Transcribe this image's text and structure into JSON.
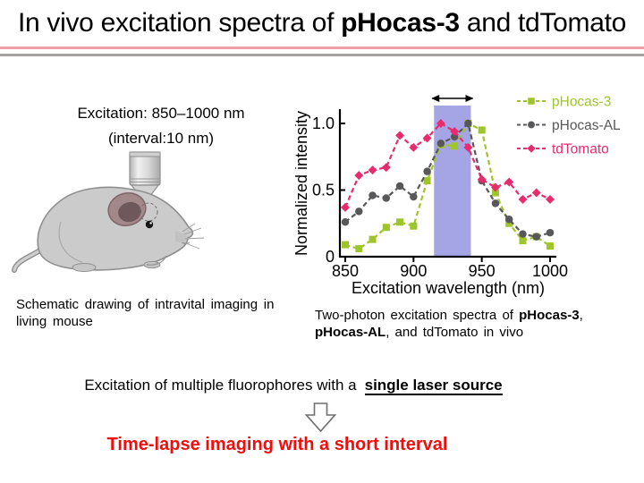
{
  "header": {
    "title_runs": [
      {
        "t": "In vivo excitation spectra of "
      },
      {
        "t": "pHocas-3",
        "b": true
      },
      {
        "t": " and tdTomato"
      }
    ],
    "divider_colors": {
      "pink": "#f2a0a3",
      "gray": "#a5a1a1"
    }
  },
  "left_panel": {
    "excitation_line1": "Excitation: 850–1000 nm",
    "excitation_line2": "(interval:10 nm)",
    "illustration": "mouse-under-two-photon-objective",
    "caption_line1": "Schematic drawing of intravital imaging in",
    "caption_line2": "living mouse"
  },
  "right_panel": {
    "caption_line1_runs": [
      {
        "t": "Two-photon excitation spectra of "
      },
      {
        "t": "pHocas-3",
        "b": true
      },
      {
        "t": ","
      }
    ],
    "caption_line2_runs": [
      {
        "t": "pHocas-AL",
        "b": true
      },
      {
        "t": ", and tdTomato in vivo"
      }
    ]
  },
  "bottom_panel": {
    "statement_runs": [
      {
        "t": "Excitation of multiple fluorophores with a"
      },
      {
        "t": "single laser source",
        "b": true,
        "u": true
      }
    ],
    "arrow_icon": "down-arrow",
    "conclusion": "Time-lapse imaging with a short interval",
    "conclusion_color": "#f20d0d"
  },
  "chart_data": {
    "type": "line",
    "title": "",
    "xlabel": "Excitation wavelength (nm)",
    "ylabel": "Normalized intensity",
    "xlim": [
      850,
      1000
    ],
    "ylim": [
      0,
      1.05
    ],
    "xticks": [
      850,
      900,
      950,
      1000
    ],
    "yticks": [
      {
        "v": 0,
        "label": "0"
      },
      {
        "v": 0.5,
        "label": "0.5"
      },
      {
        "v": 1.0,
        "label": "1.0"
      }
    ],
    "grid": false,
    "legend_position": "top-right",
    "line_style": "dashed",
    "x": [
      850,
      860,
      870,
      880,
      890,
      900,
      910,
      920,
      930,
      940,
      950,
      960,
      970,
      980,
      990,
      1000
    ],
    "series": [
      {
        "name": "pHocas-3",
        "color": "#9fc52c",
        "marker": "square",
        "values": [
          0.09,
          0.06,
          0.13,
          0.22,
          0.26,
          0.23,
          0.57,
          0.84,
          0.83,
          1.0,
          0.95,
          0.48,
          0.25,
          0.12,
          0.15,
          0.08
        ]
      },
      {
        "name": "pHocas-AL",
        "color": "#58585a",
        "marker": "circle",
        "values": [
          0.26,
          0.34,
          0.46,
          0.44,
          0.53,
          0.45,
          0.64,
          0.85,
          0.9,
          1.0,
          0.57,
          0.4,
          0.28,
          0.17,
          0.15,
          0.18
        ]
      },
      {
        "name": "tdTomato",
        "color": "#e72b6d",
        "marker": "diamond",
        "values": [
          0.37,
          0.61,
          0.65,
          0.67,
          0.91,
          0.82,
          0.89,
          1.0,
          0.94,
          0.82,
          0.58,
          0.52,
          0.56,
          0.43,
          0.48,
          0.43
        ]
      }
    ],
    "highlight_band": {
      "x_start": 915,
      "x_end": 942,
      "color": "#a5a5e6",
      "arrow_annotation": true
    }
  }
}
